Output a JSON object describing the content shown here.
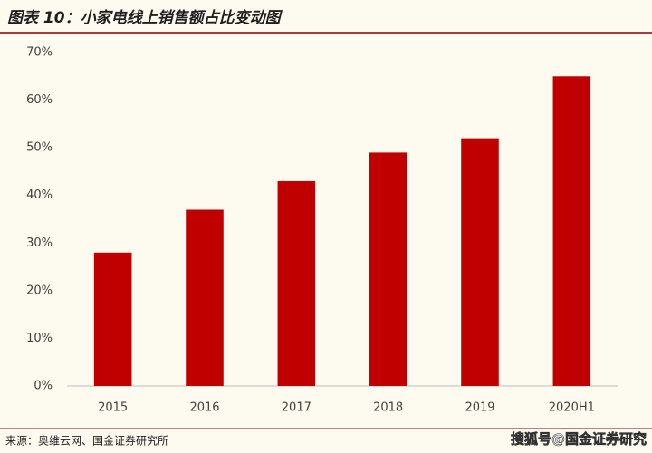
{
  "chart_data": {
    "type": "bar",
    "title": "图表 10：小家电线上销售额占比变动图",
    "categories": [
      "2015",
      "2016",
      "2017",
      "2018",
      "2019",
      "2020H1"
    ],
    "values": [
      28,
      37,
      43,
      49,
      52,
      65
    ],
    "color": "#c00000",
    "ylim": [
      0,
      70
    ],
    "yticks": [
      {
        "value": 0,
        "label": "0%"
      },
      {
        "value": 10,
        "label": "10%"
      },
      {
        "value": 20,
        "label": "20%"
      },
      {
        "value": 30,
        "label": "30%"
      },
      {
        "value": 40,
        "label": "40%"
      },
      {
        "value": 50,
        "label": "50%"
      },
      {
        "value": 60,
        "label": "60%"
      },
      {
        "value": 70,
        "label": "70%"
      }
    ],
    "grid": false,
    "source": "来源：奥维云网、国金证券研究所",
    "watermark": "搜狐号@国金证券研究"
  }
}
